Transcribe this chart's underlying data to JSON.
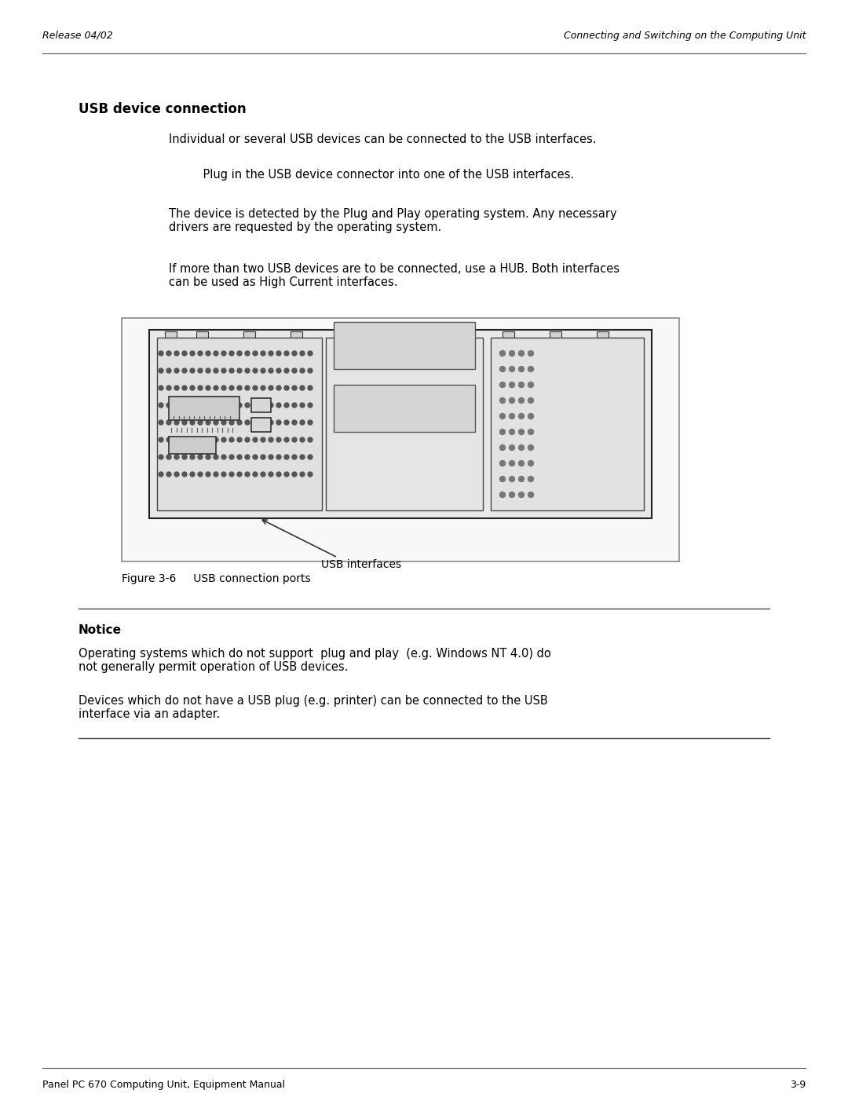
{
  "header_left": "Release 04/02",
  "header_right": "Connecting and Switching on the Computing Unit",
  "footer_left": "Panel PC 670 Computing Unit, Equipment Manual",
  "footer_right": "3-9",
  "section_title": "USB device connection",
  "para1": "Individual or several USB devices can be connected to the USB interfaces.",
  "para2": "    Plug in the USB device connector into one of the USB interfaces.",
  "para3": "The device is detected by the Plug and Play operating system. Any necessary\ndrivers are requested by the operating system.",
  "para4": "If more than two USB devices are to be connected, use a HUB. Both interfaces\ncan be used as High Current interfaces.",
  "fig_caption": "Figure 3-6     USB connection ports",
  "fig_label": "USB interfaces",
  "notice_title": "Notice",
  "notice_para1": "Operating systems which do not support  plug and play  (e.g. Windows NT 4.0) do\nnot generally permit operation of USB devices.",
  "notice_para2": "Devices which do not have a USB plug (e.g. printer) can be connected to the USB\ninterface via an adapter.",
  "bg_color": "#ffffff",
  "text_color": "#000000",
  "header_color": "#333333",
  "line_color": "#555555",
  "box_border_color": "#888888"
}
